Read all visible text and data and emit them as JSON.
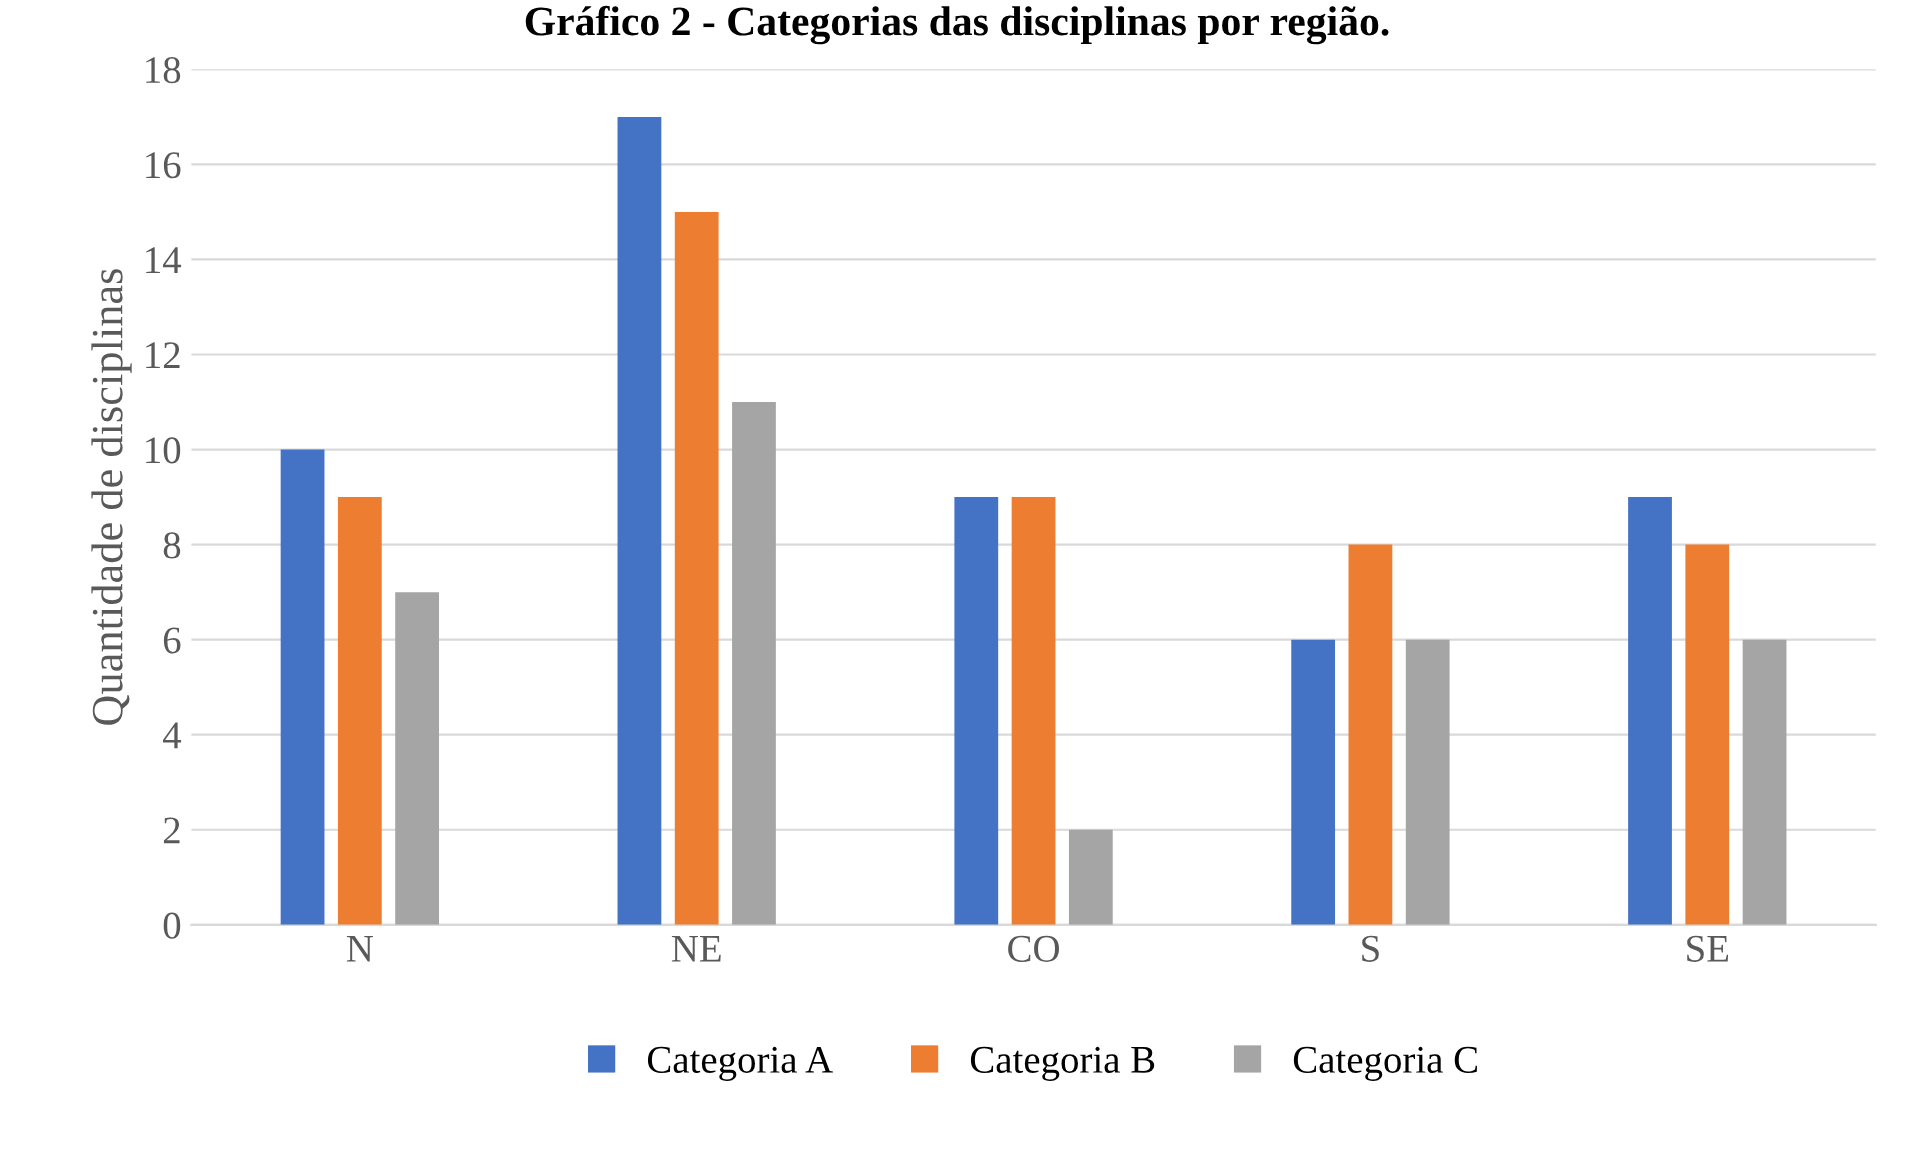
{
  "chart_data": {
    "type": "bar",
    "title": "Gráfico 2 - Categorias das disciplinas por região.",
    "ylabel": "Quantidade de disciplinas",
    "categories": [
      "N",
      "NE",
      "CO",
      "S",
      "SE"
    ],
    "series": [
      {
        "name": "Categoria A",
        "color": "#4472c4",
        "values": [
          10,
          17,
          9,
          6,
          9
        ]
      },
      {
        "name": "Categoria B",
        "color": "#ed7d31",
        "values": [
          9,
          15,
          9,
          8,
          8
        ]
      },
      {
        "name": "Categoria C",
        "color": "#a5a5a5",
        "values": [
          7,
          11,
          2,
          6,
          6
        ]
      }
    ],
    "ylim": [
      0,
      18
    ],
    "yticks": [
      0,
      2,
      4,
      6,
      8,
      10,
      12,
      14,
      16,
      18
    ],
    "grid": "y",
    "legend": "bottom"
  }
}
